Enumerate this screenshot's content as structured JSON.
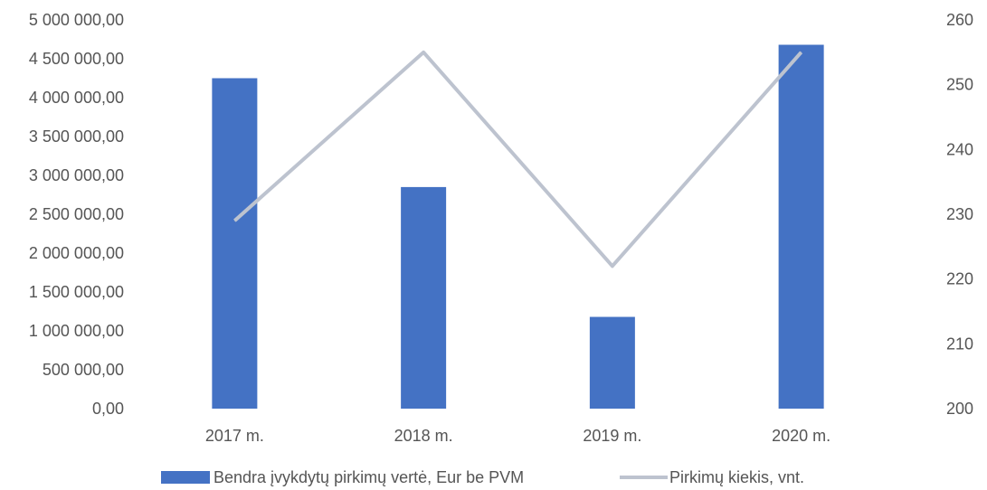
{
  "chart_data": {
    "type": "bar",
    "title": "",
    "xlabel": "",
    "ylabel": "",
    "y2label": "",
    "categories": [
      "2017 m.",
      "2018 m.",
      "2019 m.",
      "2020 m."
    ],
    "series": [
      {
        "name": "Bendra įvykdytų pirkimų vertė, Eur be PVM",
        "type": "bar",
        "axis": "left",
        "color": "#4472C4",
        "values": [
          4250000,
          2850000,
          1180000,
          4680000
        ]
      },
      {
        "name": "Pirkimų kiekis, vnt.",
        "type": "line",
        "axis": "right",
        "color": "#BDC3CF",
        "values": [
          229,
          255,
          222,
          255
        ]
      }
    ],
    "ylim": [
      0,
      5000000
    ],
    "y_ticks": [
      "0,00",
      "500 000,00",
      "1 000 000,00",
      "1 500 000,00",
      "2 000 000,00",
      "2 500 000,00",
      "3 000 000,00",
      "3 500 000,00",
      "4 000 000,00",
      "4 500 000,00",
      "5 000 000,00"
    ],
    "y2lim": [
      200,
      260
    ],
    "y2_ticks": [
      "200",
      "210",
      "220",
      "230",
      "240",
      "250",
      "260"
    ],
    "grid": false,
    "legend_position": "bottom"
  }
}
